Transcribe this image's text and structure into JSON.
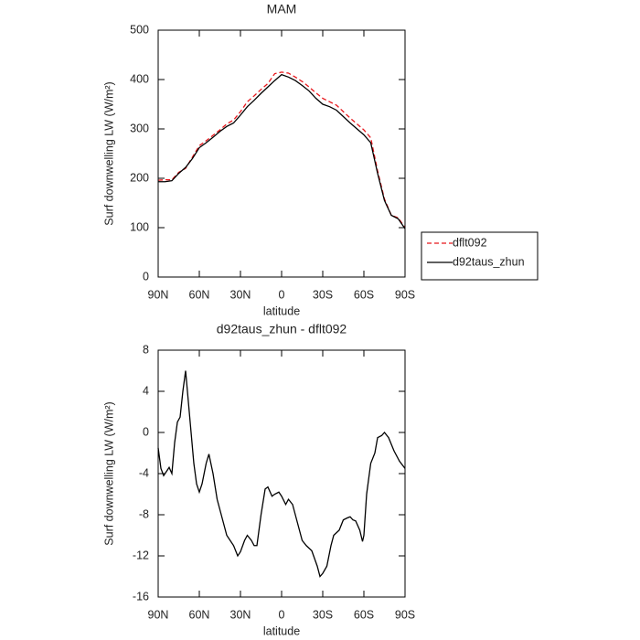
{
  "chart_data": [
    {
      "type": "line",
      "title": "MAM",
      "xlabel": "latitude",
      "ylabel": "Surf downwelling LW (W/m²)",
      "x": [
        90,
        85,
        80,
        75,
        70,
        65,
        60,
        55,
        50,
        45,
        40,
        35,
        30,
        25,
        20,
        15,
        10,
        5,
        0,
        -5,
        -10,
        -15,
        -20,
        -25,
        -30,
        -35,
        -40,
        -45,
        -50,
        -55,
        -60,
        -65,
        -70,
        -75,
        -80,
        -85,
        -90
      ],
      "series": [
        {
          "name": "dflt092",
          "color": "#e8161b",
          "dashed": true,
          "values": [
            196,
            197,
            197,
            212,
            220,
            243,
            266,
            276,
            287,
            298,
            310,
            318,
            335,
            355,
            367,
            380,
            392,
            412,
            415,
            413,
            405,
            396,
            385,
            373,
            362,
            355,
            348,
            335,
            322,
            310,
            298,
            282,
            215,
            158,
            125,
            120,
            100
          ]
        },
        {
          "name": "d92taus_zhun",
          "color": "#000000",
          "dashed": false,
          "values": [
            193,
            193,
            195,
            210,
            222,
            240,
            262,
            272,
            283,
            295,
            305,
            312,
            328,
            345,
            358,
            372,
            385,
            398,
            410,
            405,
            398,
            388,
            377,
            362,
            350,
            345,
            338,
            325,
            312,
            300,
            288,
            272,
            210,
            155,
            125,
            118,
            98
          ]
        }
      ],
      "xlim": [
        90,
        -90
      ],
      "xticks": [
        {
          "value": 90,
          "label": "90N"
        },
        {
          "value": 60,
          "label": "60N"
        },
        {
          "value": 30,
          "label": "30N"
        },
        0,
        {
          "value": -30,
          "label": "30S"
        },
        {
          "value": -60,
          "label": "60S"
        },
        {
          "value": -90,
          "label": "90S"
        }
      ],
      "ylim": [
        0,
        500
      ],
      "yticks": [
        0,
        100,
        200,
        300,
        400,
        500
      ],
      "legend": "right"
    },
    {
      "type": "line",
      "title": "d92taus_zhun - dflt092",
      "xlabel": "latitude",
      "ylabel": "Surf downwelling LW (W/m²)",
      "x": [
        90,
        88,
        86,
        84,
        82,
        80,
        78,
        76,
        74,
        72,
        70,
        68,
        66,
        64,
        62,
        60,
        58,
        55,
        53,
        50,
        47,
        44,
        40,
        35,
        32,
        30,
        27,
        25,
        22,
        20,
        18,
        15,
        12,
        10,
        7,
        5,
        2,
        0,
        -3,
        -5,
        -8,
        -12,
        -15,
        -18,
        -22,
        -26,
        -28,
        -30,
        -33,
        -36,
        -38,
        -42,
        -45,
        -48,
        -50,
        -52,
        -54,
        -57,
        -59,
        -60,
        -62,
        -65,
        -68,
        -70,
        -73,
        -75,
        -78,
        -82,
        -86,
        -90
      ],
      "values": [
        -1.5,
        -3.5,
        -4.2,
        -3.8,
        -3.4,
        -4,
        -1,
        1,
        1.5,
        4,
        6,
        3,
        0,
        -3,
        -5,
        -5.8,
        -5,
        -3,
        -2.1,
        -4,
        -6.5,
        -8,
        -10,
        -11,
        -12,
        -11.6,
        -10.5,
        -10,
        -10.5,
        -11,
        -11,
        -8,
        -5.5,
        -5.3,
        -6.2,
        -6,
        -5.8,
        -6.2,
        -7,
        -6.5,
        -7,
        -9,
        -10.5,
        -11,
        -11.5,
        -13,
        -14,
        -13.7,
        -13,
        -11,
        -10,
        -9.5,
        -8.5,
        -8.3,
        -8.2,
        -8.5,
        -8.6,
        -9.5,
        -10.6,
        -10,
        -6,
        -3,
        -2,
        -0.5,
        -0.3,
        0,
        -0.5,
        -1.8,
        -2.8,
        -3.5
      ],
      "color": "#000000",
      "xlim": [
        90,
        -90
      ],
      "xticks": [
        {
          "value": 90,
          "label": "90N"
        },
        {
          "value": 60,
          "label": "60N"
        },
        {
          "value": 30,
          "label": "30N"
        },
        0,
        {
          "value": -30,
          "label": "30S"
        },
        {
          "value": -60,
          "label": "60S"
        },
        {
          "value": -90,
          "label": "90S"
        }
      ],
      "ylim": [
        -16,
        8
      ],
      "yticks": [
        -16,
        -12,
        -8,
        -4,
        0,
        4,
        8
      ]
    }
  ]
}
